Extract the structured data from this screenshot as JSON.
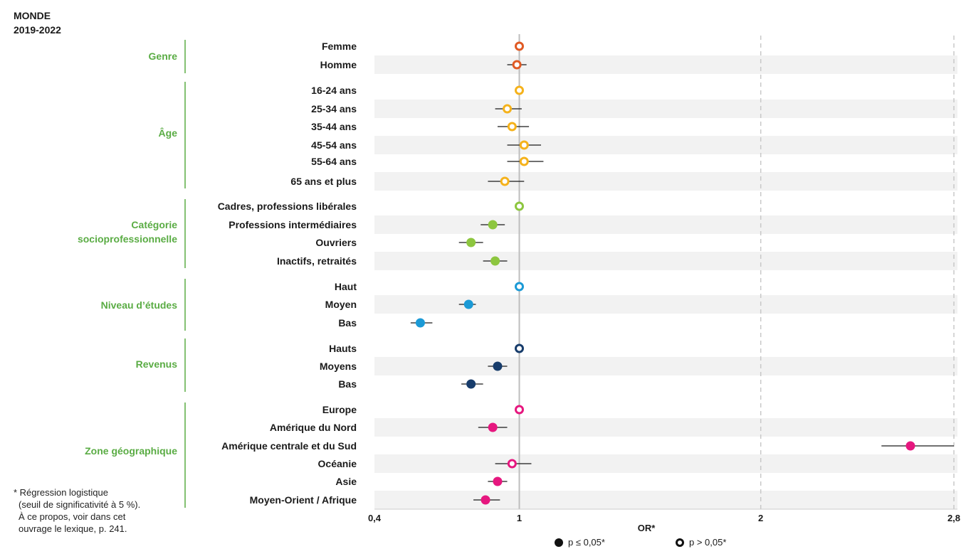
{
  "header": {
    "line1": "MONDE",
    "line2": "2019-2022"
  },
  "footnote": {
    "lines": [
      "* Régression logistique",
      "(seuil de significativité à 5 %).",
      "À ce propos, voir dans cet",
      "ouvrage le lexique, p. 241."
    ]
  },
  "legend": {
    "significant": "p ≤ 0,05*",
    "not_significant": "p > 0,05*"
  },
  "colors": {
    "group_label": "#5aac44",
    "Genre": "#e05a24",
    "Âge": "#f5b21b",
    "Catégorie socioprofessionnelle": "#8dc63f",
    "Niveau d’études": "#1b9ad6",
    "Revenus": "#173c6b",
    "Zone géographique": "#e6177f",
    "band": "#f2f2f2",
    "ref_line": "#bdbdbd",
    "grid_dash": "#c8c8c8"
  },
  "chart_data": {
    "type": "forest",
    "xlabel": "OR*",
    "xlim": [
      0.4,
      2.8
    ],
    "xticks": [
      0.4,
      1,
      2,
      2.8
    ],
    "xtick_labels": [
      "0,4",
      "1",
      "2",
      "2,8"
    ],
    "dashed_gridlines": [
      2,
      2.8
    ],
    "reference_line": 1,
    "groups": [
      {
        "name": "Genre",
        "items": [
          {
            "label": "Femme",
            "or": 1.0,
            "lo": 1.0,
            "hi": 1.0,
            "sig": false
          },
          {
            "label": "Homme",
            "or": 0.99,
            "lo": 0.95,
            "hi": 1.03,
            "sig": false
          }
        ]
      },
      {
        "name": "Âge",
        "items": [
          {
            "label": "16-24 ans",
            "or": 1.0,
            "lo": 1.0,
            "hi": 1.0,
            "sig": false
          },
          {
            "label": "25-34 ans",
            "or": 0.95,
            "lo": 0.9,
            "hi": 1.01,
            "sig": false
          },
          {
            "label": "35-44 ans",
            "or": 0.97,
            "lo": 0.91,
            "hi": 1.04,
            "sig": false
          },
          {
            "label": "45-54 ans",
            "or": 1.02,
            "lo": 0.95,
            "hi": 1.09,
            "sig": false
          },
          {
            "label": "55-64 ans",
            "or": 1.02,
            "lo": 0.95,
            "hi": 1.1,
            "sig": false
          },
          {
            "label": "65 ans et plus",
            "or": 0.94,
            "lo": 0.87,
            "hi": 1.02,
            "sig": false
          }
        ]
      },
      {
        "name": "Catégorie socioprofessionnelle",
        "items": [
          {
            "label": "Cadres, professions libérales",
            "or": 1.0,
            "lo": 1.0,
            "hi": 1.0,
            "sig": false
          },
          {
            "label": "Professions intermédiaires",
            "or": 0.89,
            "lo": 0.84,
            "hi": 0.94,
            "sig": true
          },
          {
            "label": "Ouvriers",
            "or": 0.8,
            "lo": 0.75,
            "hi": 0.85,
            "sig": true
          },
          {
            "label": "Inactifs, retraités",
            "or": 0.9,
            "lo": 0.85,
            "hi": 0.95,
            "sig": true
          }
        ]
      },
      {
        "name": "Niveau d’études",
        "items": [
          {
            "label": "Haut",
            "or": 1.0,
            "lo": 1.0,
            "hi": 1.0,
            "sig": false
          },
          {
            "label": "Moyen",
            "or": 0.79,
            "lo": 0.75,
            "hi": 0.82,
            "sig": true
          },
          {
            "label": "Bas",
            "or": 0.59,
            "lo": 0.55,
            "hi": 0.64,
            "sig": true
          }
        ]
      },
      {
        "name": "Revenus",
        "items": [
          {
            "label": "Hauts",
            "or": 1.0,
            "lo": 1.0,
            "hi": 1.0,
            "sig": false
          },
          {
            "label": "Moyens",
            "or": 0.91,
            "lo": 0.87,
            "hi": 0.95,
            "sig": true
          },
          {
            "label": "Bas",
            "or": 0.8,
            "lo": 0.76,
            "hi": 0.85,
            "sig": true
          }
        ]
      },
      {
        "name": "Zone géographique",
        "items": [
          {
            "label": "Europe",
            "or": 1.0,
            "lo": 1.0,
            "hi": 1.0,
            "sig": false
          },
          {
            "label": "Amérique du Nord",
            "or": 0.89,
            "lo": 0.83,
            "hi": 0.95,
            "sig": true
          },
          {
            "label": "Amérique centrale et du Sud",
            "or": 2.62,
            "lo": 2.5,
            "hi": 2.8,
            "sig": true
          },
          {
            "label": "Océanie",
            "or": 0.97,
            "lo": 0.9,
            "hi": 1.05,
            "sig": false
          },
          {
            "label": "Asie",
            "or": 0.91,
            "lo": 0.87,
            "hi": 0.95,
            "sig": true
          },
          {
            "label": "Moyen-Orient / Afrique",
            "or": 0.86,
            "lo": 0.81,
            "hi": 0.92,
            "sig": true
          }
        ]
      }
    ]
  }
}
